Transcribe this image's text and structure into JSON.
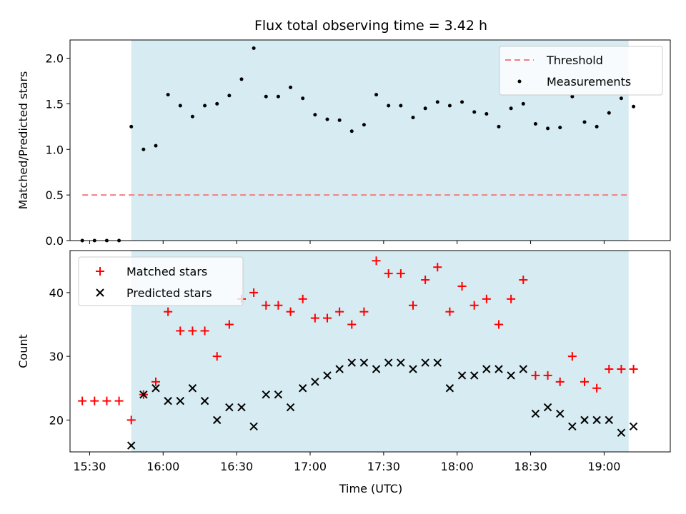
{
  "chart_data": {
    "title": "Flux total observing time = 3.42 h",
    "xlabel": "Time (UTC)",
    "x_tick_labels": [
      "15:30",
      "16:00",
      "16:30",
      "17:00",
      "17:30",
      "18:00",
      "18:30",
      "19:00"
    ],
    "x_tick_times": [
      "15:30",
      "16:00",
      "16:30",
      "17:00",
      "17:30",
      "18:00",
      "18:30",
      "19:00"
    ],
    "xlim": [
      "15:22",
      "19:27"
    ],
    "shaded_span": {
      "start": "15:47",
      "end": "19:10",
      "color": "#add8e6"
    },
    "time_points": [
      "15:27",
      "15:32",
      "15:37",
      "15:42",
      "15:47",
      "15:52",
      "15:57",
      "16:02",
      "16:07",
      "16:12",
      "16:17",
      "16:22",
      "16:27",
      "16:32",
      "16:37",
      "16:42",
      "16:47",
      "16:52",
      "16:57",
      "17:02",
      "17:07",
      "17:12",
      "17:17",
      "17:22",
      "17:27",
      "17:32",
      "17:37",
      "17:42",
      "17:47",
      "17:52",
      "17:57",
      "18:02",
      "18:07",
      "18:12",
      "18:17",
      "18:22",
      "18:27",
      "18:32",
      "18:37",
      "18:42",
      "18:47",
      "18:52",
      "18:57",
      "19:02",
      "19:07",
      "19:12"
    ],
    "plots": [
      {
        "type": "scatter",
        "ylabel": "Matched/Predicted stars",
        "ylim": [
          0,
          2.2
        ],
        "y_ticks": [
          0.0,
          0.5,
          1.0,
          1.5,
          2.0
        ],
        "y_tick_labels": [
          "0.0",
          "0.5",
          "1.0",
          "1.5",
          "2.0"
        ],
        "legend_position": "top-right",
        "threshold": {
          "name": "Threshold",
          "value": 0.5,
          "x_start": "15:27",
          "x_end": "19:10",
          "color": "#f08080",
          "style": "dashed"
        },
        "series": [
          {
            "name": "Measurements",
            "marker": "dot",
            "color": "#000000",
            "values": [
              0.0,
              0.0,
              0.0,
              0.0,
              1.25,
              1.0,
              1.04,
              1.6,
              1.48,
              1.36,
              1.48,
              1.5,
              1.59,
              1.77,
              2.11,
              1.58,
              1.58,
              1.68,
              1.56,
              1.38,
              1.33,
              1.32,
              1.2,
              1.27,
              1.6,
              1.48,
              1.48,
              1.35,
              1.45,
              1.52,
              1.48,
              1.52,
              1.41,
              1.39,
              1.25,
              1.45,
              1.5,
              1.28,
              1.23,
              1.24,
              1.58,
              1.3,
              1.25,
              1.4,
              1.56,
              1.47
            ]
          }
        ]
      },
      {
        "type": "scatter",
        "ylabel": "Count",
        "ylim": [
          15,
          46.6
        ],
        "y_ticks": [
          20,
          30,
          40
        ],
        "y_tick_labels": [
          "20",
          "30",
          "40"
        ],
        "legend_position": "top-left",
        "series": [
          {
            "name": "Matched stars",
            "marker": "plus",
            "color": "#ff0000",
            "values": [
              23,
              23,
              23,
              23,
              20,
              24,
              26,
              37,
              34,
              34,
              34,
              30,
              35,
              39,
              40,
              38,
              38,
              37,
              39,
              36,
              36,
              37,
              35,
              37,
              45,
              43,
              43,
              38,
              42,
              44,
              37,
              41,
              38,
              39,
              35,
              39,
              42,
              27,
              27,
              26,
              30,
              26,
              25,
              28,
              28,
              28
            ]
          },
          {
            "name": "Predicted stars",
            "marker": "x",
            "color": "#000000",
            "values": [
              null,
              null,
              null,
              null,
              16,
              24,
              25,
              23,
              23,
              25,
              23,
              20,
              22,
              22,
              19,
              24,
              24,
              22,
              25,
              26,
              27,
              28,
              29,
              29,
              28,
              29,
              29,
              28,
              29,
              29,
              25,
              27,
              27,
              28,
              28,
              27,
              28,
              21,
              22,
              21,
              19,
              20,
              20,
              20,
              18,
              19
            ]
          }
        ]
      }
    ]
  }
}
